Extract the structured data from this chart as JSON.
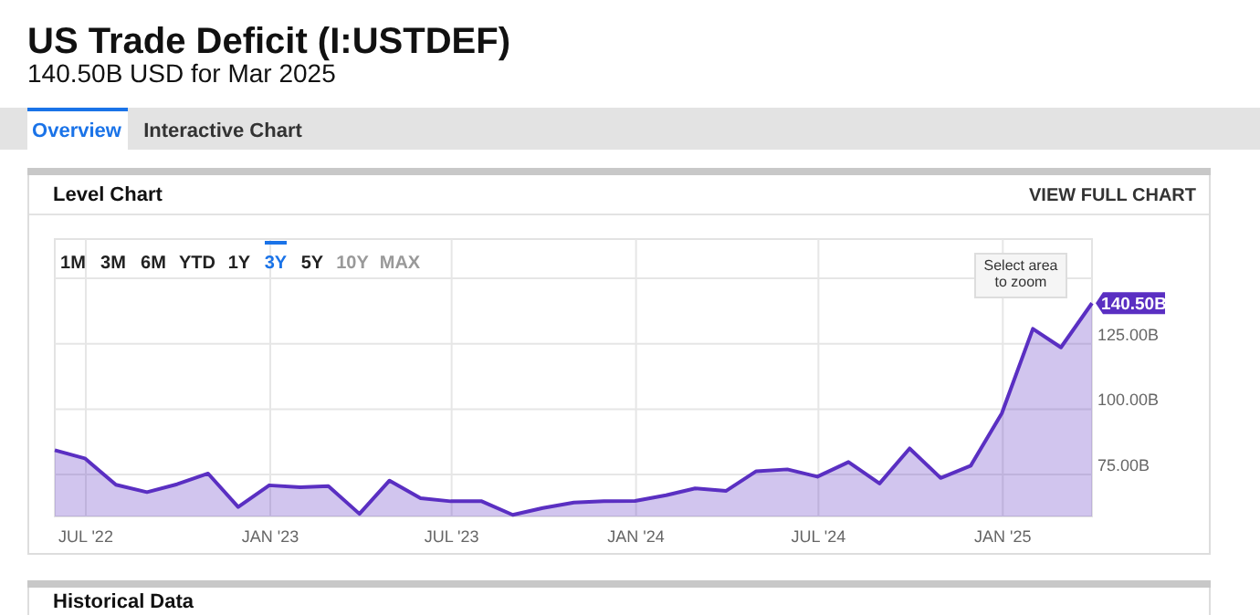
{
  "chart_data": {
    "type": "area",
    "title": "US Trade Deficit (I:USTDEF)",
    "subtitle": "140.50B USD for Mar 2025",
    "x": [
      "2022-05-31",
      "2022-06-30",
      "2022-07-31",
      "2022-08-31",
      "2022-09-30",
      "2022-10-31",
      "2022-11-30",
      "2022-12-31",
      "2023-01-31",
      "2023-02-28",
      "2023-03-31",
      "2023-04-30",
      "2023-05-31",
      "2023-06-30",
      "2023-07-31",
      "2023-08-31",
      "2023-09-30",
      "2023-10-31",
      "2023-11-30",
      "2023-12-31",
      "2024-01-31",
      "2024-02-29",
      "2024-03-31",
      "2024-04-30",
      "2024-05-31",
      "2024-06-30",
      "2024-07-31",
      "2024-08-31",
      "2024-09-30",
      "2024-10-31",
      "2024-11-30",
      "2024-12-31",
      "2025-01-31",
      "2025-02-28",
      "2025-03-31"
    ],
    "series": [
      {
        "color": "#5a2fc2",
        "values": [
          84.3,
          81.2,
          71.1,
          68.3,
          71.3,
          75.4,
          62.6,
          70.9,
          70.2,
          70.6,
          60.0,
          72.7,
          66.0,
          64.8,
          64.8,
          59.6,
          62.2,
          64.3,
          64.8,
          64.9,
          67.1,
          69.7,
          68.8,
          76.3,
          77.0,
          74.2,
          79.8,
          71.6,
          85.0,
          73.7,
          78.4,
          98.4,
          130.7,
          123.6,
          140.5
        ]
      }
    ],
    "xlim": [
      "2022-05-31",
      "2025-03-31"
    ],
    "xticks": [
      {
        "value": "2022-07-01",
        "label": "JUL '22"
      },
      {
        "value": "2023-01-01",
        "label": "JAN '23"
      },
      {
        "value": "2023-07-01",
        "label": "JUL '23"
      },
      {
        "value": "2024-01-01",
        "label": "JAN '24"
      },
      {
        "value": "2024-07-01",
        "label": "JUL '24"
      },
      {
        "value": "2025-01-01",
        "label": "JAN '25"
      }
    ],
    "ylim": [
      59,
      165
    ],
    "yticks": [
      {
        "value": 75,
        "label": "75.00B"
      },
      {
        "value": 100,
        "label": "100.00B"
      },
      {
        "value": 125,
        "label": "125.00B"
      },
      {
        "value": 150,
        "label": null
      }
    ],
    "grid": true,
    "annotations": [
      "Overview",
      "Interactive Chart",
      "Level Chart",
      "VIEW FULL CHART",
      "1M",
      "3M",
      "6M",
      "YTD",
      "1Y",
      "3Y",
      "5Y",
      "10Y",
      "MAX",
      "Select area to zoom",
      "Historical Data",
      {
        "text": "140.50B",
        "x": "2025-03-31",
        "y": 140.5
      }
    ]
  }
}
